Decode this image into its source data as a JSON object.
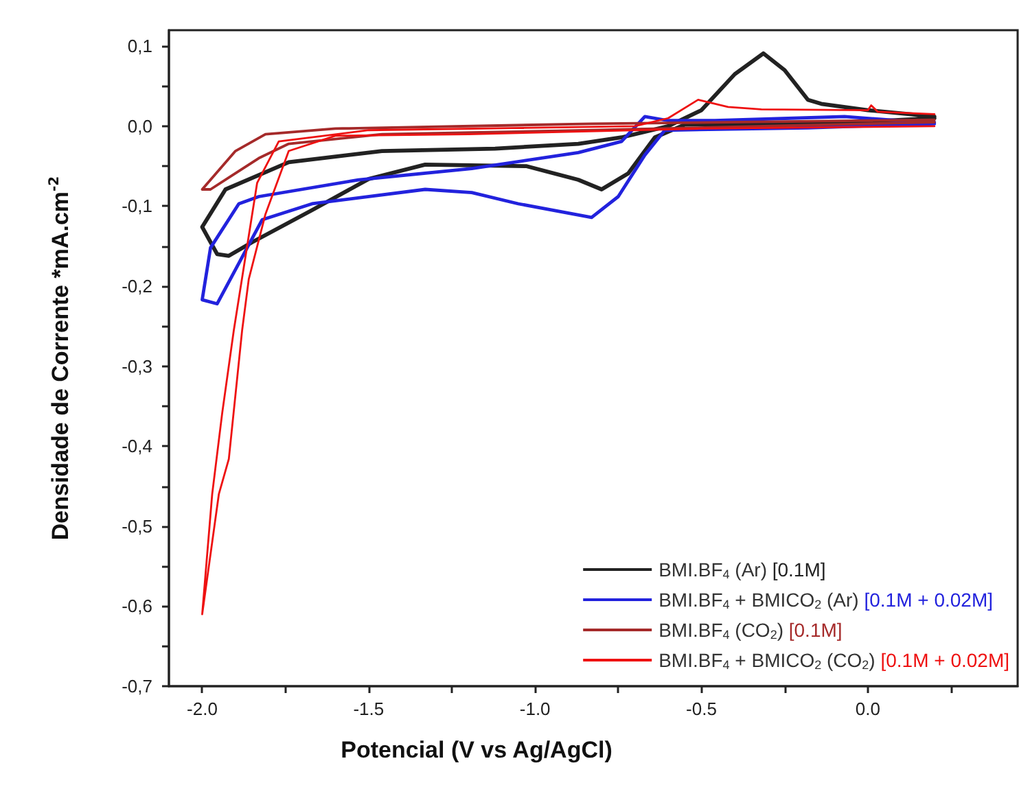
{
  "chart_data": {
    "type": "line",
    "xlabel": "Potencial (V vs Ag/AgCl)",
    "ylabel": "Densidade de Corrente *mA.cm$^{-2}$",
    "xlim": [
      -2.1,
      0.45
    ],
    "ylim": [
      -0.7,
      0.12
    ],
    "xticks": [
      {
        "value": -2.0,
        "label": "-2.0"
      },
      {
        "value": -1.75,
        "label": null
      },
      {
        "value": -1.5,
        "label": "-1.5"
      },
      {
        "value": -1.25,
        "label": null
      },
      {
        "value": -1.0,
        "label": "-1.0"
      },
      {
        "value": -0.75,
        "label": null
      },
      {
        "value": -0.5,
        "label": "-0.5"
      },
      {
        "value": -0.25,
        "label": null
      },
      {
        "value": 0.0,
        "label": "0.0"
      },
      {
        "value": 0.25,
        "label": null
      }
    ],
    "yticks": [
      {
        "value": 0.1,
        "label": "0,1"
      },
      {
        "value": 0.05,
        "label": null
      },
      {
        "value": 0.0,
        "label": "0,0"
      },
      {
        "value": -0.05,
        "label": null
      },
      {
        "value": -0.1,
        "label": "-0,1"
      },
      {
        "value": -0.15,
        "label": null
      },
      {
        "value": -0.2,
        "label": "-0,2"
      },
      {
        "value": -0.25,
        "label": null
      },
      {
        "value": -0.3,
        "label": "-0,3"
      },
      {
        "value": -0.35,
        "label": null
      },
      {
        "value": -0.4,
        "label": "-0,4"
      },
      {
        "value": -0.45,
        "label": null
      },
      {
        "value": -0.5,
        "label": "-0,5"
      },
      {
        "value": -0.55,
        "label": null
      },
      {
        "value": -0.6,
        "label": "-0,6"
      },
      {
        "value": -0.65,
        "label": null
      },
      {
        "value": -0.7,
        "label": "-0,7"
      }
    ],
    "grid": false,
    "legend": "bottom right",
    "marker": "none",
    "line_style": "solid",
    "series": [
      {
        "name": "BMI.BF$_{4}$ (Ar) [0.1M]",
        "color": "#222222",
        "x": [
          0.2,
          -0.12,
          -0.55,
          -0.64,
          -0.72,
          -0.8,
          -0.87,
          -1.025,
          -1.33,
          -1.5,
          -1.67,
          -1.85,
          -1.92,
          -1.955,
          -2.0,
          -1.93,
          -1.74,
          -1.46,
          -1.12,
          -0.87,
          -0.74,
          -0.6,
          -0.5,
          -0.4,
          -0.314,
          -0.25,
          -0.18,
          -0.14,
          0.0,
          0.2
        ],
        "values": [
          0.01,
          0.003,
          0.002,
          -0.014,
          -0.059,
          -0.079,
          -0.067,
          -0.05,
          -0.048,
          -0.066,
          -0.105,
          -0.145,
          -0.162,
          -0.16,
          -0.126,
          -0.079,
          -0.045,
          -0.031,
          -0.028,
          -0.022,
          -0.014,
          0.0,
          0.02,
          0.065,
          0.091,
          0.07,
          0.033,
          0.028,
          0.02,
          0.012
        ]
      },
      {
        "name": "BMI.BF$_{4}$ + BMICO$_{2}$ (Ar) [0.1M + 0.02M]",
        "color": "#2222dd",
        "x": [
          0.2,
          -0.18,
          -0.61,
          -0.67,
          -0.75,
          -0.83,
          -1.05,
          -1.19,
          -1.33,
          -1.67,
          -1.82,
          -1.955,
          -2.0,
          -1.975,
          -1.89,
          -1.83,
          -1.53,
          -1.19,
          -0.87,
          -0.74,
          -0.67,
          -0.6,
          -0.46,
          -0.07,
          0.09,
          0.2
        ],
        "values": [
          0.003,
          -0.002,
          -0.005,
          -0.036,
          -0.088,
          -0.114,
          -0.097,
          -0.083,
          -0.079,
          -0.097,
          -0.117,
          -0.222,
          -0.217,
          -0.152,
          -0.097,
          -0.088,
          -0.067,
          -0.053,
          -0.033,
          -0.019,
          0.012,
          0.007,
          0.007,
          0.012,
          0.007,
          0.005
        ]
      },
      {
        "name": "BMI.BF$_{4}$ (CO$_{2}$) [0.1M]",
        "color": "#a52a2a",
        "x": [
          0.2,
          -0.83,
          -1.46,
          -1.74,
          -1.83,
          -1.975,
          -2.0,
          -1.9,
          -1.81,
          -1.6,
          -0.83,
          0.2
        ],
        "values": [
          0.005,
          -0.005,
          -0.01,
          -0.022,
          -0.04,
          -0.079,
          -0.079,
          -0.031,
          -0.01,
          -0.003,
          0.003,
          0.008
        ]
      },
      {
        "name": "BMI.BF$_{4}$ + BMICO$_{2}$ (CO$_{2}$) [0.1M + 0.02M]",
        "color": "#ee1111",
        "x": [
          0.2,
          -0.5,
          -1.2,
          -1.6,
          -1.74,
          -1.81,
          -1.86,
          -1.88,
          -1.92,
          -1.95,
          -2.0,
          -1.97,
          -1.94,
          -1.905,
          -1.835,
          -1.77,
          -1.5,
          -0.7,
          -0.6,
          -0.51,
          -0.42,
          -0.32,
          0.0,
          0.01,
          0.03,
          0.2
        ],
        "values": [
          0.0,
          -0.003,
          -0.01,
          -0.012,
          -0.031,
          -0.11,
          -0.191,
          -0.255,
          -0.416,
          -0.46,
          -0.61,
          -0.46,
          -0.359,
          -0.255,
          -0.071,
          -0.019,
          -0.005,
          0.0,
          0.01,
          0.033,
          0.024,
          0.021,
          0.02,
          0.026,
          0.018,
          0.015
        ]
      }
    ]
  }
}
